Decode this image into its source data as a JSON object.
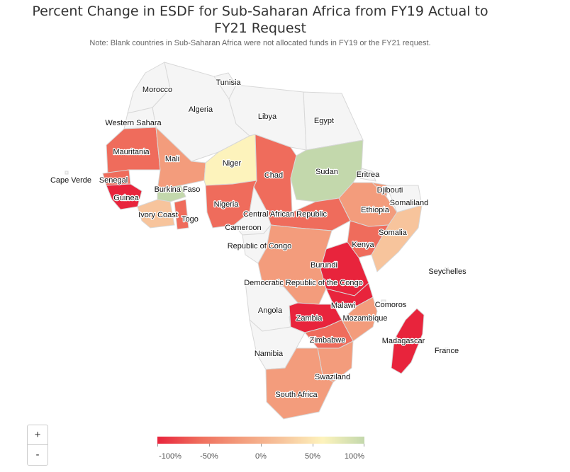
{
  "title_line1": "Percent Change in ESDF for Sub-Saharan Africa from FY19 Actual to",
  "title_line2": "FY21 Request",
  "note": "Note: Blank countries in Sub-Saharan Africa were not allocated funds in FY19 or the FY21 request.",
  "colors": {
    "neg_strong": "#e8243c",
    "neg_mid": "#ef6c5c",
    "neg_light": "#f39c7c",
    "neg_pale": "#f7c49c",
    "zero": "#fdf3bc",
    "pos": "#c3d8ac",
    "blank": "#f5f5f5",
    "border": "#d8d8d8"
  },
  "legend": {
    "min": -100,
    "max": 100,
    "ticks": [
      "-100%",
      "-50%",
      "0%",
      "50%",
      "100%"
    ],
    "tick_values": [
      -100,
      -50,
      0,
      50,
      100
    ]
  },
  "zoom": {
    "in_label": "+",
    "out_label": "-"
  },
  "countries": [
    {
      "name": "Morocco",
      "value": null
    },
    {
      "name": "Tunisia",
      "value": null
    },
    {
      "name": "Algeria",
      "value": null
    },
    {
      "name": "Libya",
      "value": null
    },
    {
      "name": "Egypt",
      "value": null
    },
    {
      "name": "Western Sahara",
      "value": null
    },
    {
      "name": "Mauritania",
      "value": -60
    },
    {
      "name": "Mali",
      "value": -45
    },
    {
      "name": "Niger",
      "value": 10
    },
    {
      "name": "Chad",
      "value": -70
    },
    {
      "name": "Sudan",
      "value": 100
    },
    {
      "name": "Eritrea",
      "value": null
    },
    {
      "name": "Cape Verde",
      "value": null
    },
    {
      "name": "Senegal",
      "value": -75
    },
    {
      "name": "Guinea",
      "value": -100
    },
    {
      "name": "Burkina Faso",
      "value": 60
    },
    {
      "name": "Ivory Coast",
      "value": -25
    },
    {
      "name": "Togo",
      "value": -80
    },
    {
      "name": "Nigeria",
      "value": -60
    },
    {
      "name": "Djibouti",
      "value": -40
    },
    {
      "name": "Somaliland",
      "value": null
    },
    {
      "name": "Ethiopia",
      "value": -35
    },
    {
      "name": "Central African Republic",
      "value": -65
    },
    {
      "name": "Cameroon",
      "value": null
    },
    {
      "name": "Somalia",
      "value": -20
    },
    {
      "name": "Kenya",
      "value": -70
    },
    {
      "name": "Republic of Congo",
      "value": null
    },
    {
      "name": "Seychelles",
      "value": null
    },
    {
      "name": "Burundi",
      "value": -100
    },
    {
      "name": "Democratic Republic of the Congo",
      "value": -50
    },
    {
      "name": "Angola",
      "value": null
    },
    {
      "name": "Malawi",
      "value": -90
    },
    {
      "name": "Comoros",
      "value": null
    },
    {
      "name": "Zambia",
      "value": -95
    },
    {
      "name": "Mozambique",
      "value": -30
    },
    {
      "name": "Zimbabwe",
      "value": -80
    },
    {
      "name": "Madagascar",
      "value": -85
    },
    {
      "name": "France",
      "value": null
    },
    {
      "name": "Namibia",
      "value": null
    },
    {
      "name": "Swaziland",
      "value": -30
    },
    {
      "name": "South Africa",
      "value": -35
    }
  ]
}
